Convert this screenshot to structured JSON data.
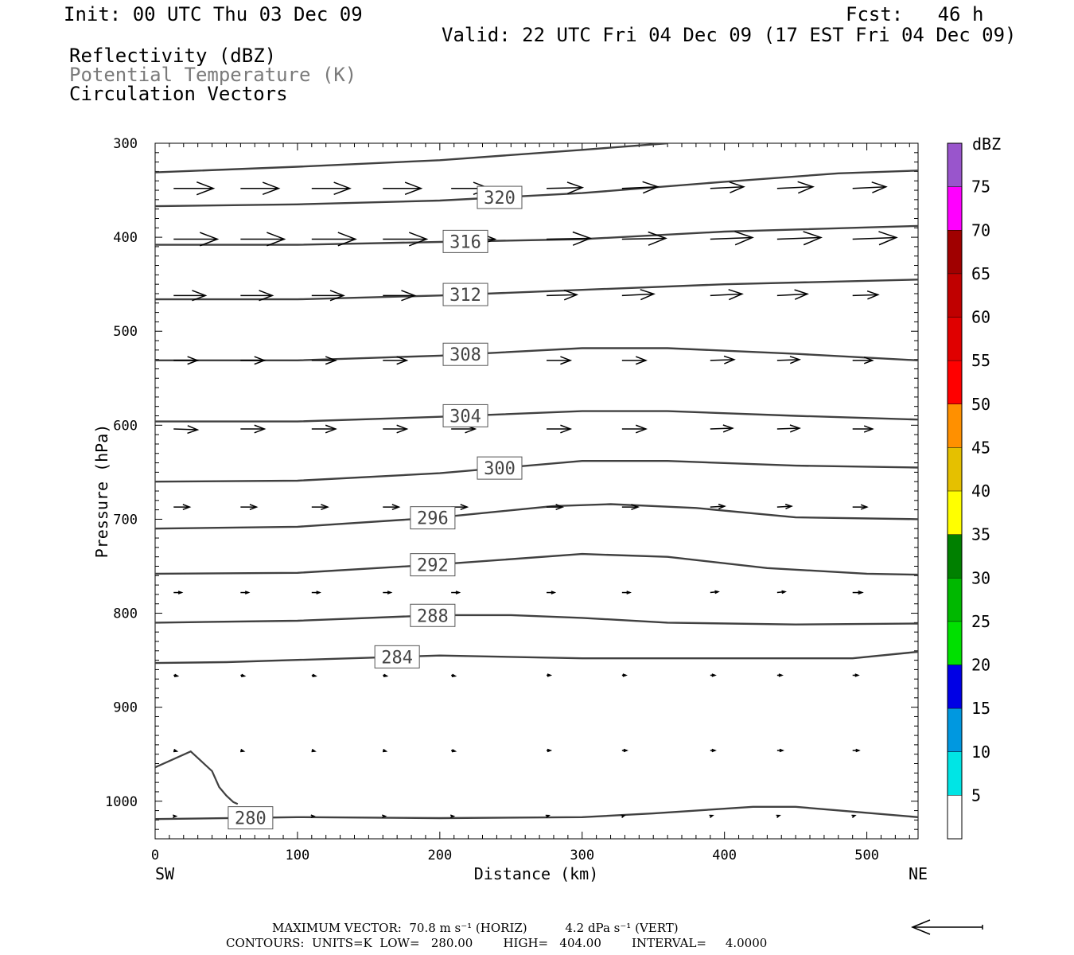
{
  "header": {
    "init": "Init: 00 UTC Thu 03 Dec 09",
    "fcst": "Fcst:   46 h",
    "valid": "Valid: 22 UTC Fri 04 Dec 09 (17 EST Fri 04 Dec 09)",
    "fields": [
      "Reflectivity (dBZ)",
      "Potential Temperature (K)",
      "Circulation Vectors"
    ]
  },
  "colors": {
    "contour": "#404040",
    "field_gray": "#7a7a7a"
  },
  "chart_data": {
    "type": "cross-section",
    "xlabel": "Distance (km)",
    "ylabel": "Pressure (hPa)",
    "xlim": [
      0,
      536
    ],
    "ylim": [
      1040,
      300
    ],
    "y_scale": "linear, inverted",
    "x_ticks": [
      "0",
      "100",
      "200",
      "300",
      "400",
      "500"
    ],
    "y_ticks": [
      "300",
      "400",
      "500",
      "600",
      "700",
      "800",
      "900",
      "1000"
    ],
    "x_end_labels": {
      "left": "SW",
      "right": "NE"
    },
    "colorbar": {
      "title": "dBZ",
      "labels": [
        "5",
        "10",
        "15",
        "20",
        "25",
        "30",
        "35",
        "40",
        "45",
        "50",
        "55",
        "60",
        "65",
        "70",
        "75"
      ],
      "colors": [
        "#00e5e5",
        "#0098e0",
        "#0000e5",
        "#00e000",
        "#00b800",
        "#008000",
        "#ffff00",
        "#e5c000",
        "#ff9000",
        "#ff0000",
        "#e00000",
        "#c00000",
        "#a00000",
        "#ff00ff",
        "#9955cc"
      ]
    },
    "theta_contours": [
      {
        "label": "280",
        "x": [
          0,
          100,
          200,
          300,
          350,
          420,
          450,
          536
        ],
        "p": [
          1019,
          1017,
          1018,
          1017,
          1013,
          1006,
          1006,
          1017
        ],
        "label_x": 67
      },
      {
        "label": "284",
        "x": [
          0,
          50,
          200,
          300,
          400,
          490,
          536
        ],
        "p": [
          853,
          852,
          845,
          848,
          848,
          848,
          841
        ],
        "label_x": 170
      },
      {
        "label": "288",
        "x": [
          0,
          100,
          200,
          250,
          300,
          360,
          450,
          536
        ],
        "p": [
          810,
          808,
          802,
          802,
          805,
          810,
          812,
          811
        ],
        "label_x": 195
      },
      {
        "label": "292",
        "x": [
          0,
          100,
          200,
          300,
          360,
          430,
          500,
          536
        ],
        "p": [
          758,
          757,
          748,
          737,
          740,
          752,
          758,
          759
        ],
        "label_x": 195
      },
      {
        "label": "296",
        "x": [
          0,
          100,
          200,
          280,
          320,
          380,
          450,
          536
        ],
        "p": [
          710,
          708,
          698,
          686,
          684,
          688,
          698,
          700
        ],
        "label_x": 195
      },
      {
        "label": "300",
        "x": [
          0,
          100,
          200,
          300,
          360,
          450,
          536
        ],
        "p": [
          660,
          659,
          651,
          638,
          638,
          643,
          645
        ],
        "label_x": 242
      },
      {
        "label": "304",
        "x": [
          0,
          100,
          200,
          300,
          360,
          450,
          536
        ],
        "p": [
          596,
          596,
          591,
          585,
          585,
          590,
          594
        ],
        "label_x": 218
      },
      {
        "label": "308",
        "x": [
          0,
          100,
          200,
          300,
          360,
          450,
          536
        ],
        "p": [
          531,
          531,
          526,
          518,
          518,
          524,
          531
        ],
        "label_x": 218
      },
      {
        "label": "312",
        "x": [
          0,
          100,
          200,
          300,
          400,
          536
        ],
        "p": [
          466,
          466,
          462,
          456,
          450,
          445
        ],
        "label_x": 218
      },
      {
        "label": "316",
        "x": [
          0,
          100,
          200,
          300,
          400,
          536
        ],
        "p": [
          408,
          408,
          405,
          402,
          394,
          388
        ],
        "label_x": 218
      },
      {
        "label": "320",
        "x": [
          0,
          100,
          200,
          300,
          400,
          480,
          536
        ],
        "p": [
          367,
          365,
          361,
          353,
          341,
          332,
          329
        ],
        "label_x": 242
      },
      {
        "label": "",
        "x": [
          0,
          100,
          200,
          300,
          360
        ],
        "p": [
          331,
          325,
          318,
          307,
          300
        ]
      }
    ],
    "reflectivity_outline": {
      "x": [
        0,
        25,
        40,
        45,
        50,
        55,
        58
      ],
      "p": [
        964,
        947,
        968,
        985,
        994,
        1001,
        1003
      ]
    },
    "vector_rows": [
      {
        "p": 348,
        "x": [
          13,
          60,
          110,
          160,
          208,
          275,
          328,
          390,
          437,
          490
        ],
        "u": [
          50,
          48,
          48,
          48,
          48,
          45,
          45,
          42,
          45,
          42
        ],
        "v": [
          0,
          0,
          0,
          0,
          0,
          -1,
          -2,
          -2,
          -2,
          -2
        ]
      },
      {
        "p": 402,
        "x": [
          13,
          60,
          110,
          160,
          208,
          275,
          328,
          390,
          437,
          490
        ],
        "u": [
          55,
          55,
          55,
          55,
          55,
          55,
          55,
          53,
          55,
          55
        ],
        "v": [
          0,
          0,
          0,
          0,
          0,
          -1,
          -1,
          -2,
          -2,
          -2
        ]
      },
      {
        "p": 462,
        "x": [
          13,
          60,
          110,
          160,
          208,
          275,
          328,
          390,
          437,
          490
        ],
        "u": [
          40,
          40,
          40,
          40,
          38,
          38,
          40,
          40,
          38,
          32
        ],
        "v": [
          0,
          0,
          0,
          0,
          0,
          -1,
          -2,
          -2,
          -2,
          -1
        ]
      },
      {
        "p": 531,
        "x": [
          13,
          60,
          110,
          160,
          208,
          275,
          328,
          390,
          437,
          490
        ],
        "u": [
          30,
          30,
          30,
          30,
          30,
          30,
          30,
          30,
          28,
          25
        ],
        "v": [
          0,
          0,
          0,
          0,
          0,
          0,
          0,
          -1,
          -1,
          0
        ]
      },
      {
        "p": 604,
        "x": [
          13,
          60,
          110,
          160,
          208,
          275,
          328,
          390,
          437,
          490
        ],
        "u": [
          30,
          30,
          30,
          30,
          30,
          30,
          30,
          28,
          28,
          25
        ],
        "v": [
          1,
          0,
          0,
          0,
          0,
          0,
          0,
          -1,
          -1,
          0
        ]
      },
      {
        "p": 687,
        "x": [
          13,
          60,
          110,
          160,
          208,
          275,
          328,
          390,
          437,
          490
        ],
        "u": [
          20,
          20,
          20,
          20,
          20,
          20,
          20,
          18,
          18,
          18
        ],
        "v": [
          0,
          0,
          0,
          0,
          0,
          0,
          0,
          -1,
          -1,
          0
        ]
      },
      {
        "p": 778,
        "x": [
          13,
          60,
          110,
          160,
          208,
          275,
          328,
          390,
          437,
          490
        ],
        "u": [
          10,
          10,
          10,
          10,
          10,
          10,
          10,
          10,
          10,
          12
        ],
        "v": [
          0,
          0,
          0,
          0,
          0,
          0,
          0,
          -1,
          -1,
          0
        ]
      },
      {
        "p": 866,
        "x": [
          13,
          60,
          110,
          160,
          208,
          275,
          328,
          390,
          437,
          490
        ],
        "u": [
          5,
          5,
          5,
          5,
          5,
          5,
          5,
          6,
          6,
          7
        ],
        "v": [
          1,
          1,
          1,
          1,
          1,
          0,
          0,
          0,
          0,
          0
        ]
      },
      {
        "p": 946,
        "x": [
          13,
          60,
          110,
          160,
          208,
          275,
          328,
          390,
          437,
          490
        ],
        "u": [
          4,
          4,
          4,
          4,
          5,
          5,
          6,
          6,
          7,
          8
        ],
        "v": [
          1,
          1,
          1,
          1,
          1,
          0,
          0,
          0,
          0,
          0
        ]
      },
      {
        "p": 1016,
        "x": [
          13,
          60,
          110,
          160,
          208,
          275,
          328,
          390,
          437,
          490
        ],
        "u": [
          3,
          3,
          3,
          3,
          3,
          3,
          3,
          3,
          3,
          3
        ],
        "v": [
          0,
          0,
          0,
          0,
          0,
          -1,
          -1,
          -1,
          -1,
          -1
        ]
      }
    ]
  },
  "footer": {
    "line1": "MAXIMUM VECTOR:  70.8 m s⁻¹ (HORIZ)          4.2 dPa s⁻¹ (VERT)",
    "line2": "CONTOURS:  UNITS=K  LOW=   280.00        HIGH=   404.00        INTERVAL=     4.0000"
  }
}
